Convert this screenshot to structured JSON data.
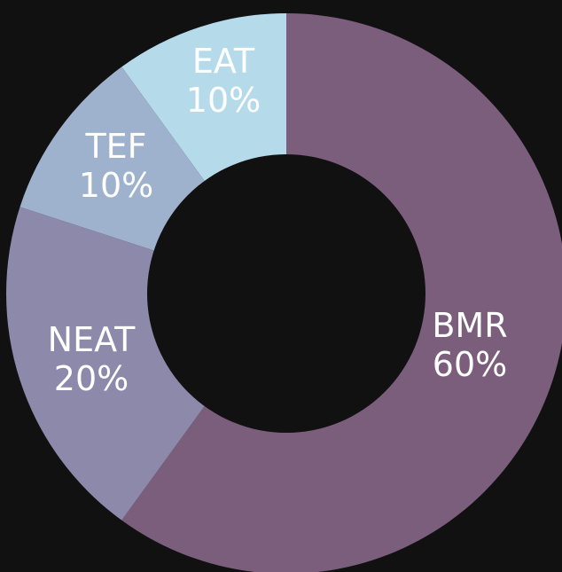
{
  "chart_data": {
    "type": "pie",
    "variant": "donut",
    "title": "",
    "background": "#111111",
    "label_color": "#ffffff",
    "slices": [
      {
        "label": "BMR",
        "value": 60,
        "percent_label": "60%",
        "color": "#7b5e7b"
      },
      {
        "label": "NEAT",
        "value": 20,
        "percent_label": "20%",
        "color": "#8c89ab"
      },
      {
        "label": "TEF",
        "value": 10,
        "percent_label": "10%",
        "color": "#9eb1cd"
      },
      {
        "label": "EAT",
        "value": 10,
        "percent_label": "10%",
        "color": "#b5dbeb"
      }
    ]
  }
}
